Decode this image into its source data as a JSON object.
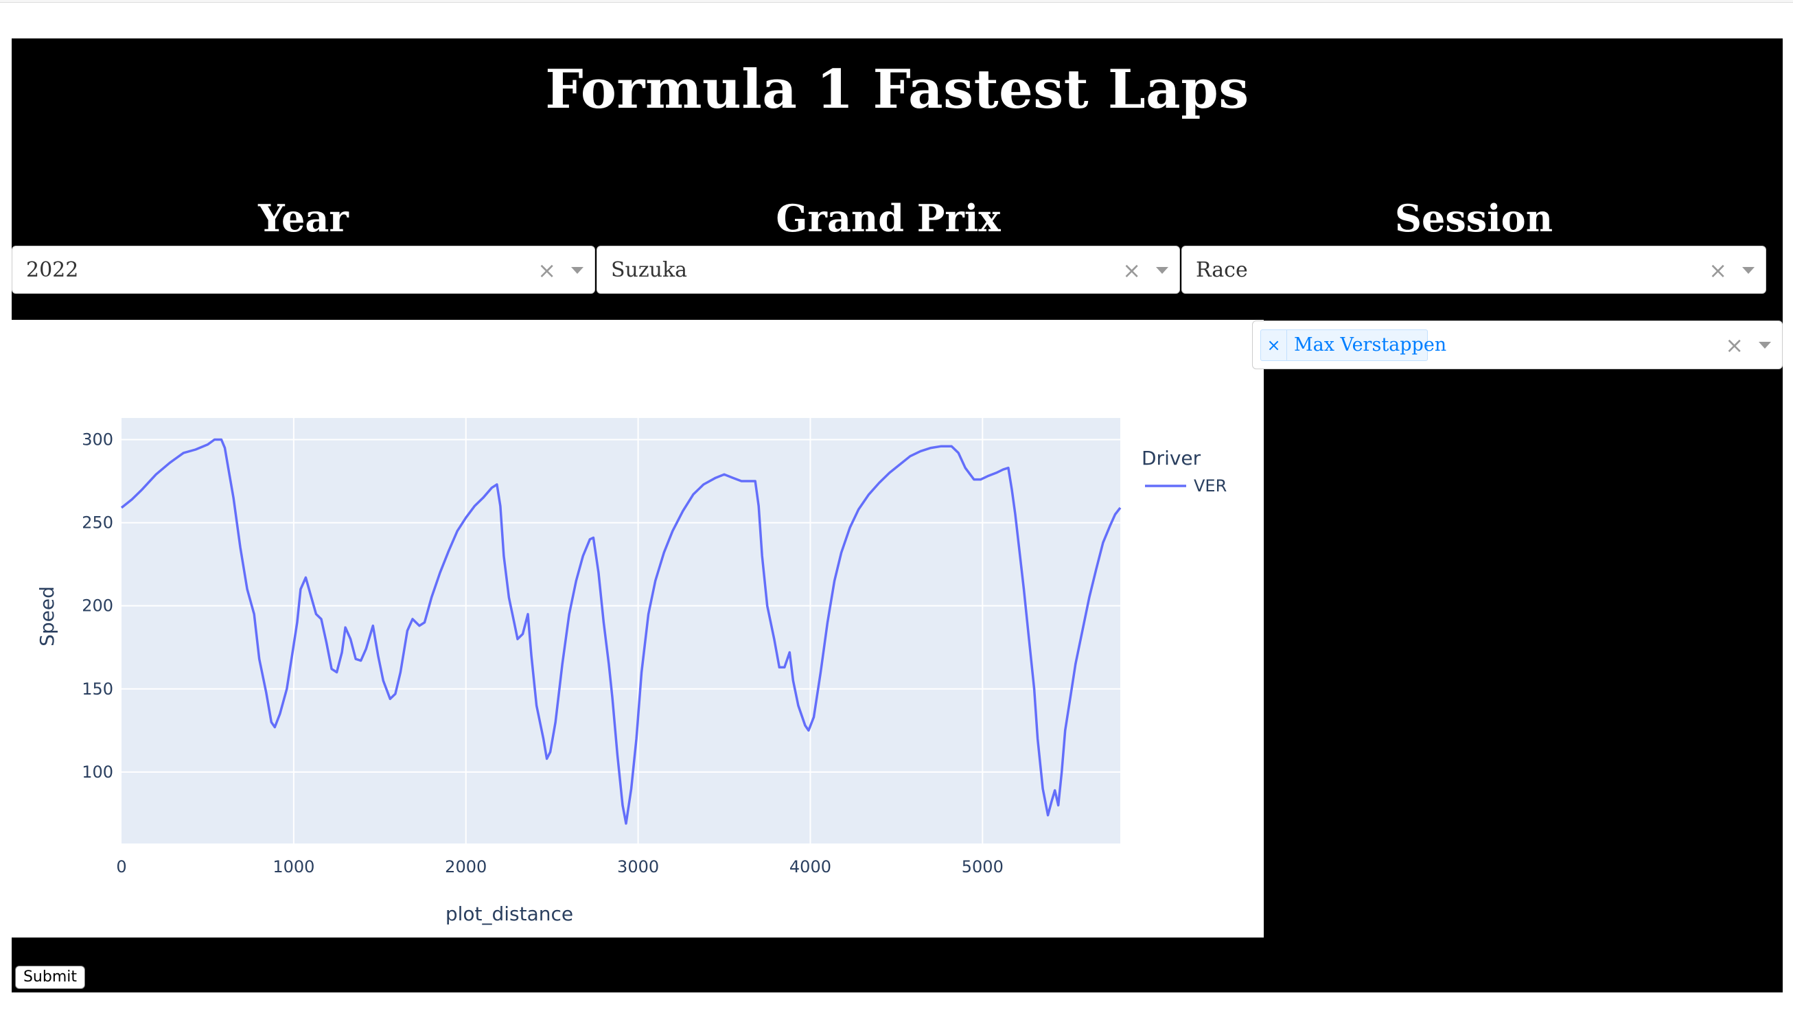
{
  "header": {
    "title": "Formula 1 Fastest Laps"
  },
  "filters": {
    "year": {
      "label": "Year",
      "value": "2022"
    },
    "grand_prix": {
      "label": "Grand Prix",
      "value": "Suzuka"
    },
    "session": {
      "label": "Session",
      "value": "Race"
    }
  },
  "drivers": {
    "selected": [
      "Max Verstappen"
    ]
  },
  "icons": {
    "clear": "×",
    "remove": "×"
  },
  "submit_label": "Submit",
  "colors": {
    "line": "#636efa",
    "plot_bg": "#e5ecf6",
    "tag_text": "#007eff"
  },
  "chart_data": {
    "type": "line",
    "title": "",
    "xlabel": "plot_distance",
    "ylabel": "Speed",
    "xlim": [
      0,
      5800
    ],
    "ylim": [
      57,
      313
    ],
    "x_ticks": [
      0,
      1000,
      2000,
      3000,
      4000,
      5000
    ],
    "y_ticks": [
      100,
      150,
      200,
      250,
      300
    ],
    "legend": {
      "title": "Driver",
      "position": "top-right"
    },
    "series": [
      {
        "name": "VER",
        "points": [
          [
            0,
            259
          ],
          [
            60,
            264
          ],
          [
            120,
            270
          ],
          [
            200,
            279
          ],
          [
            280,
            286
          ],
          [
            360,
            292
          ],
          [
            430,
            294
          ],
          [
            500,
            297
          ],
          [
            540,
            300
          ],
          [
            580,
            300
          ],
          [
            600,
            295
          ],
          [
            620,
            283
          ],
          [
            650,
            265
          ],
          [
            690,
            235
          ],
          [
            730,
            210
          ],
          [
            770,
            195
          ],
          [
            800,
            168
          ],
          [
            840,
            148
          ],
          [
            870,
            130
          ],
          [
            890,
            127
          ],
          [
            920,
            135
          ],
          [
            960,
            150
          ],
          [
            990,
            170
          ],
          [
            1020,
            190
          ],
          [
            1040,
            210
          ],
          [
            1070,
            217
          ],
          [
            1100,
            206
          ],
          [
            1130,
            195
          ],
          [
            1160,
            192
          ],
          [
            1190,
            178
          ],
          [
            1220,
            162
          ],
          [
            1250,
            160
          ],
          [
            1280,
            172
          ],
          [
            1300,
            187
          ],
          [
            1330,
            180
          ],
          [
            1360,
            168
          ],
          [
            1390,
            167
          ],
          [
            1420,
            174
          ],
          [
            1460,
            188
          ],
          [
            1490,
            170
          ],
          [
            1520,
            155
          ],
          [
            1560,
            144
          ],
          [
            1590,
            147
          ],
          [
            1620,
            160
          ],
          [
            1660,
            185
          ],
          [
            1690,
            192
          ],
          [
            1730,
            188
          ],
          [
            1760,
            190
          ],
          [
            1800,
            205
          ],
          [
            1850,
            220
          ],
          [
            1900,
            233
          ],
          [
            1950,
            245
          ],
          [
            2000,
            253
          ],
          [
            2050,
            260
          ],
          [
            2100,
            265
          ],
          [
            2150,
            271
          ],
          [
            2180,
            273
          ],
          [
            2200,
            260
          ],
          [
            2220,
            230
          ],
          [
            2250,
            205
          ],
          [
            2280,
            190
          ],
          [
            2300,
            180
          ],
          [
            2330,
            183
          ],
          [
            2360,
            195
          ],
          [
            2380,
            170
          ],
          [
            2410,
            140
          ],
          [
            2450,
            120
          ],
          [
            2470,
            108
          ],
          [
            2490,
            112
          ],
          [
            2520,
            130
          ],
          [
            2560,
            165
          ],
          [
            2600,
            195
          ],
          [
            2640,
            215
          ],
          [
            2680,
            230
          ],
          [
            2720,
            240
          ],
          [
            2740,
            241
          ],
          [
            2770,
            220
          ],
          [
            2800,
            190
          ],
          [
            2830,
            165
          ],
          [
            2850,
            145
          ],
          [
            2880,
            110
          ],
          [
            2910,
            80
          ],
          [
            2930,
            69
          ],
          [
            2960,
            90
          ],
          [
            2990,
            120
          ],
          [
            3020,
            160
          ],
          [
            3060,
            195
          ],
          [
            3100,
            215
          ],
          [
            3150,
            232
          ],
          [
            3200,
            245
          ],
          [
            3260,
            257
          ],
          [
            3320,
            267
          ],
          [
            3380,
            273
          ],
          [
            3450,
            277
          ],
          [
            3500,
            279
          ],
          [
            3550,
            277
          ],
          [
            3600,
            275
          ],
          [
            3680,
            275
          ],
          [
            3700,
            260
          ],
          [
            3720,
            230
          ],
          [
            3750,
            200
          ],
          [
            3790,
            180
          ],
          [
            3820,
            163
          ],
          [
            3850,
            163
          ],
          [
            3880,
            172
          ],
          [
            3900,
            155
          ],
          [
            3930,
            140
          ],
          [
            3970,
            128
          ],
          [
            3990,
            125
          ],
          [
            4020,
            133
          ],
          [
            4060,
            160
          ],
          [
            4100,
            190
          ],
          [
            4140,
            215
          ],
          [
            4180,
            232
          ],
          [
            4230,
            247
          ],
          [
            4280,
            258
          ],
          [
            4340,
            267
          ],
          [
            4400,
            274
          ],
          [
            4460,
            280
          ],
          [
            4520,
            285
          ],
          [
            4580,
            290
          ],
          [
            4640,
            293
          ],
          [
            4700,
            295
          ],
          [
            4760,
            296
          ],
          [
            4820,
            296
          ],
          [
            4860,
            292
          ],
          [
            4900,
            283
          ],
          [
            4950,
            276
          ],
          [
            4990,
            276
          ],
          [
            5030,
            278
          ],
          [
            5080,
            280
          ],
          [
            5120,
            282
          ],
          [
            5150,
            283
          ],
          [
            5170,
            270
          ],
          [
            5190,
            255
          ],
          [
            5210,
            237
          ],
          [
            5240,
            210
          ],
          [
            5270,
            180
          ],
          [
            5300,
            150
          ],
          [
            5320,
            120
          ],
          [
            5350,
            90
          ],
          [
            5380,
            74
          ],
          [
            5400,
            82
          ],
          [
            5420,
            89
          ],
          [
            5440,
            80
          ],
          [
            5460,
            100
          ],
          [
            5480,
            125
          ],
          [
            5510,
            145
          ],
          [
            5540,
            165
          ],
          [
            5580,
            185
          ],
          [
            5620,
            205
          ],
          [
            5660,
            222
          ],
          [
            5700,
            238
          ],
          [
            5740,
            248
          ],
          [
            5770,
            255
          ],
          [
            5800,
            259
          ]
        ]
      }
    ]
  }
}
